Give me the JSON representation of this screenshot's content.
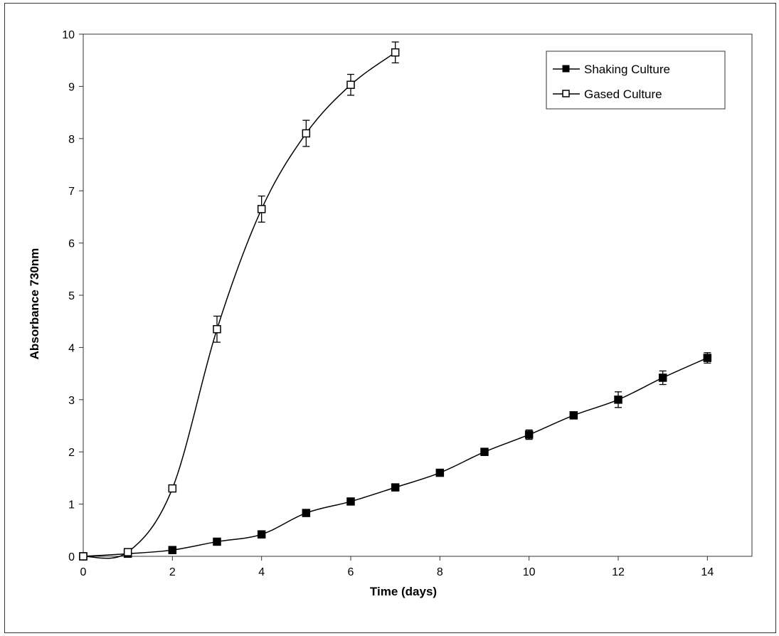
{
  "chart_data": {
    "type": "line",
    "title": "",
    "xlabel": "Time (days)",
    "ylabel": "Absorbance 730nm",
    "xlim": [
      0,
      15
    ],
    "ylim": [
      0,
      10
    ],
    "x_ticks": [
      0,
      2,
      4,
      6,
      8,
      10,
      12,
      14
    ],
    "y_ticks": [
      0,
      1,
      2,
      3,
      4,
      5,
      6,
      7,
      8,
      9,
      10
    ],
    "grid": false,
    "legend_position": "top-right",
    "series": [
      {
        "name": "Shaking Culture",
        "marker": "filled-square",
        "x": [
          0,
          1,
          2,
          3,
          4,
          5,
          6,
          7,
          8,
          9,
          10,
          11,
          12,
          13,
          14
        ],
        "y": [
          0.0,
          0.05,
          0.12,
          0.28,
          0.42,
          0.83,
          1.05,
          1.32,
          1.6,
          2.0,
          2.33,
          2.7,
          3.0,
          3.42,
          3.8
        ],
        "error": [
          0.02,
          0.02,
          0.03,
          0.04,
          0.05,
          0.05,
          0.05,
          0.05,
          0.05,
          0.07,
          0.09,
          0.07,
          0.15,
          0.13,
          0.1
        ]
      },
      {
        "name": "Gased Culture",
        "marker": "open-square",
        "x": [
          0,
          1,
          2,
          3,
          4,
          5,
          6,
          7
        ],
        "y": [
          0.0,
          0.08,
          1.3,
          4.35,
          6.65,
          8.1,
          9.03,
          9.65
        ],
        "error": [
          0.02,
          0.04,
          0.06,
          0.25,
          0.25,
          0.25,
          0.2,
          0.2
        ]
      }
    ]
  }
}
